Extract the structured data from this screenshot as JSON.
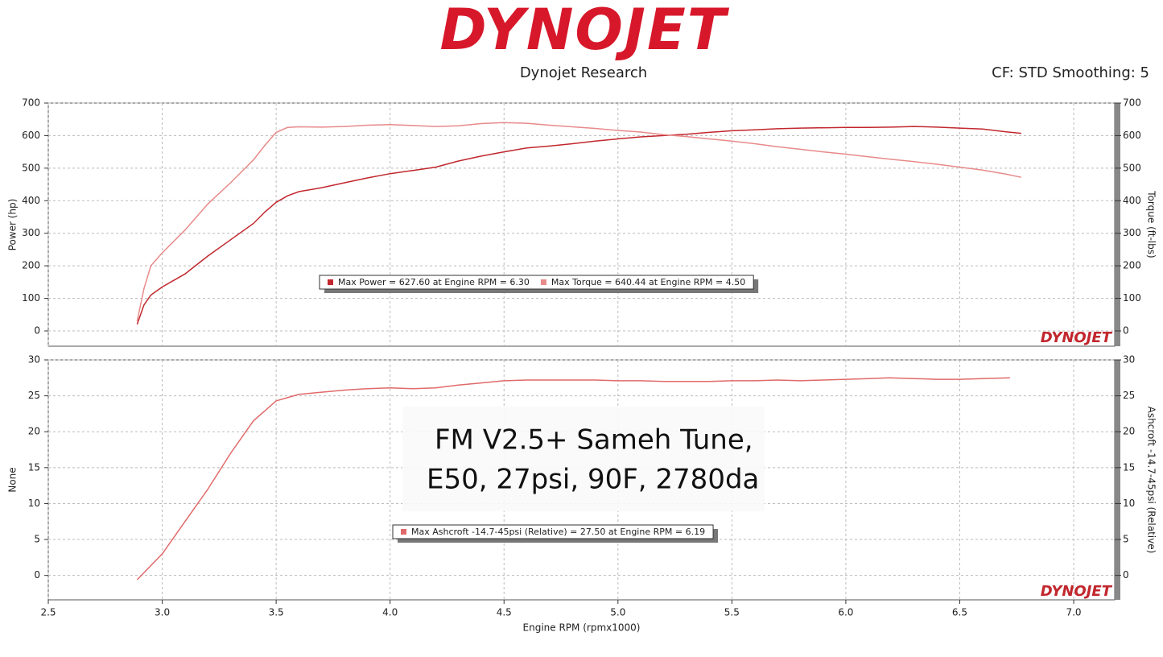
{
  "header": {
    "logo": "DYNOJET",
    "subtitle": "Dynojet Research",
    "settings": "CF: STD Smoothing: 5"
  },
  "chart_data": [
    {
      "type": "line",
      "ylabel": "Power (hp)",
      "y2label": "Torque (ft-lbs)",
      "ylim": [
        -47,
        700
      ],
      "yticks": [
        0,
        100,
        200,
        300,
        400,
        500,
        600,
        700
      ],
      "y2lim": [
        -47,
        700
      ],
      "y2ticks": [
        0,
        100,
        200,
        300,
        400,
        500,
        600,
        700
      ],
      "grid": true,
      "x": [
        2.89,
        2.92,
        2.95,
        3.0,
        3.1,
        3.2,
        3.3,
        3.4,
        3.45,
        3.5,
        3.55,
        3.6,
        3.7,
        3.8,
        3.9,
        4.0,
        4.1,
        4.2,
        4.3,
        4.4,
        4.5,
        4.6,
        4.7,
        4.8,
        4.9,
        5.0,
        5.1,
        5.2,
        5.3,
        5.4,
        5.5,
        5.6,
        5.7,
        5.8,
        5.9,
        6.0,
        6.1,
        6.2,
        6.3,
        6.4,
        6.5,
        6.6,
        6.7,
        6.77
      ],
      "series": [
        {
          "name": "Max Power = 627.60 at Engine RPM = 6.30",
          "color": "#c1272d",
          "values": [
            20,
            80,
            110,
            135,
            175,
            230,
            280,
            330,
            365,
            395,
            415,
            428,
            440,
            455,
            470,
            483,
            493,
            503,
            522,
            537,
            550,
            562,
            568,
            575,
            583,
            590,
            596,
            600,
            604,
            610,
            615,
            618,
            621,
            623,
            624,
            625,
            625,
            626,
            628,
            626,
            623,
            620,
            612,
            607
          ]
        },
        {
          "name": "Max Torque = 640.44 at Engine RPM = 4.50",
          "color": "#e88a8a",
          "axis": "y2",
          "values": [
            30,
            130,
            200,
            240,
            310,
            390,
            455,
            525,
            570,
            610,
            625,
            627,
            626,
            628,
            632,
            634,
            631,
            628,
            630,
            637,
            640,
            638,
            632,
            627,
            622,
            616,
            611,
            603,
            597,
            590,
            583,
            575,
            566,
            558,
            550,
            543,
            535,
            527,
            520,
            512,
            503,
            494,
            482,
            472
          ]
        }
      ]
    },
    {
      "type": "line",
      "ylabel": "None",
      "y2label": "Ashcroft -14.7-45psi (Relative)",
      "xlabel": "Engine RPM (rpmx1000)",
      "xlim": [
        2.5,
        7.18
      ],
      "xticks": [
        2.5,
        {
          "value": 3,
          "label": "3.0"
        },
        3.5,
        {
          "value": 4,
          "label": "4.0"
        },
        4.5,
        {
          "value": 5,
          "label": "5.0"
        },
        5.5,
        {
          "value": 6,
          "label": "6.0"
        },
        6.5,
        {
          "value": 7,
          "label": "7.0"
        }
      ],
      "ylim": [
        -3.4,
        30
      ],
      "yticks": [
        0,
        5,
        10,
        15,
        20,
        25,
        30
      ],
      "y2lim": [
        -3.4,
        30
      ],
      "y2ticks": [
        0,
        5,
        10,
        15,
        20,
        25,
        30
      ],
      "grid": true,
      "annotations": [
        "FM V2.5+ Sameh Tune,",
        "E50, 27psi, 90F, 2780da"
      ],
      "x": [
        2.89,
        3.0,
        3.1,
        3.2,
        3.3,
        3.4,
        3.5,
        3.6,
        3.7,
        3.8,
        3.9,
        4.0,
        4.1,
        4.2,
        4.3,
        4.4,
        4.5,
        4.6,
        4.7,
        4.8,
        4.9,
        5.0,
        5.1,
        5.2,
        5.3,
        5.4,
        5.5,
        5.6,
        5.7,
        5.8,
        5.9,
        6.0,
        6.1,
        6.19,
        6.3,
        6.4,
        6.5,
        6.6,
        6.72
      ],
      "series": [
        {
          "name": "Max Ashcroft -14.7-45psi (Relative) = 27.50 at Engine RPM = 6.19",
          "color": "#e06a6a",
          "values": [
            -0.6,
            3,
            7.5,
            12,
            17,
            21.5,
            24.3,
            25.2,
            25.5,
            25.8,
            26,
            26.1,
            26,
            26.1,
            26.5,
            26.8,
            27.1,
            27.2,
            27.2,
            27.2,
            27.2,
            27.1,
            27.1,
            27.0,
            27.0,
            27.0,
            27.1,
            27.1,
            27.2,
            27.1,
            27.2,
            27.3,
            27.4,
            27.5,
            27.4,
            27.3,
            27.3,
            27.4,
            27.5
          ]
        }
      ]
    }
  ]
}
